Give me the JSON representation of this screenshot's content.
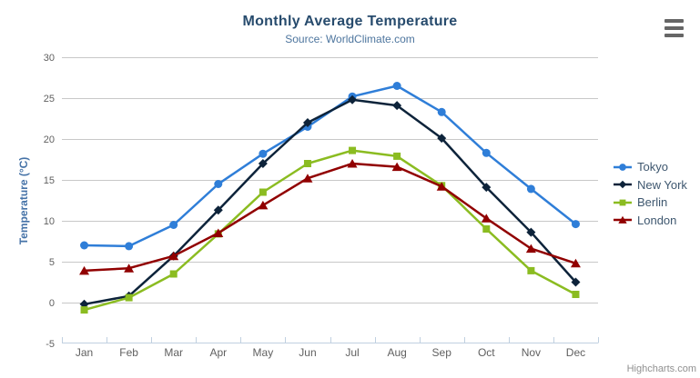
{
  "title": "Monthly Average Temperature",
  "subtitle": "Source: WorldClimate.com",
  "credit_label": "Highcharts.com",
  "theme": {
    "background": "#FFFFFF",
    "title_color": "#274b6d",
    "subtitle_color": "#4d759e",
    "grid_color": "#C8C8C8",
    "axis_line_color": "#C0D0E0",
    "tick_label_color": "#606060",
    "y_title_color": "#4572A7",
    "legend_text_color": "#3E576F",
    "credit_color": "#909090",
    "menu_icon_color": "#666666"
  },
  "chart_data": {
    "type": "line",
    "title": "Monthly Average Temperature",
    "subtitle": "Source: WorldClimate.com",
    "xlabel": "",
    "ylabel": "Temperature (°C)",
    "ylim": [
      -5,
      30
    ],
    "ytick_step": 5,
    "grid": "horizontal gridlines only",
    "legend_position": "right",
    "categories": [
      "Jan",
      "Feb",
      "Mar",
      "Apr",
      "May",
      "Jun",
      "Jul",
      "Aug",
      "Sep",
      "Oct",
      "Nov",
      "Dec"
    ],
    "series": [
      {
        "name": "Tokyo",
        "color": "#2f7ed8",
        "marker": "circle",
        "values": [
          7.0,
          6.9,
          9.5,
          14.5,
          18.2,
          21.5,
          25.2,
          26.5,
          23.3,
          18.3,
          13.9,
          9.6
        ]
      },
      {
        "name": "New York",
        "color": "#0d233a",
        "marker": "diamond",
        "values": [
          -0.2,
          0.8,
          5.7,
          11.3,
          17.0,
          22.0,
          24.8,
          24.1,
          20.1,
          14.1,
          8.6,
          2.5
        ]
      },
      {
        "name": "Berlin",
        "color": "#8bbc21",
        "marker": "square",
        "values": [
          -0.9,
          0.6,
          3.5,
          8.4,
          13.5,
          17.0,
          18.6,
          17.9,
          14.3,
          9.0,
          3.9,
          1.0
        ]
      },
      {
        "name": "London",
        "color": "#910000",
        "marker": "triangle",
        "values": [
          3.9,
          4.2,
          5.7,
          8.5,
          11.9,
          15.2,
          17.0,
          16.6,
          14.2,
          10.3,
          6.6,
          4.8
        ]
      }
    ]
  }
}
